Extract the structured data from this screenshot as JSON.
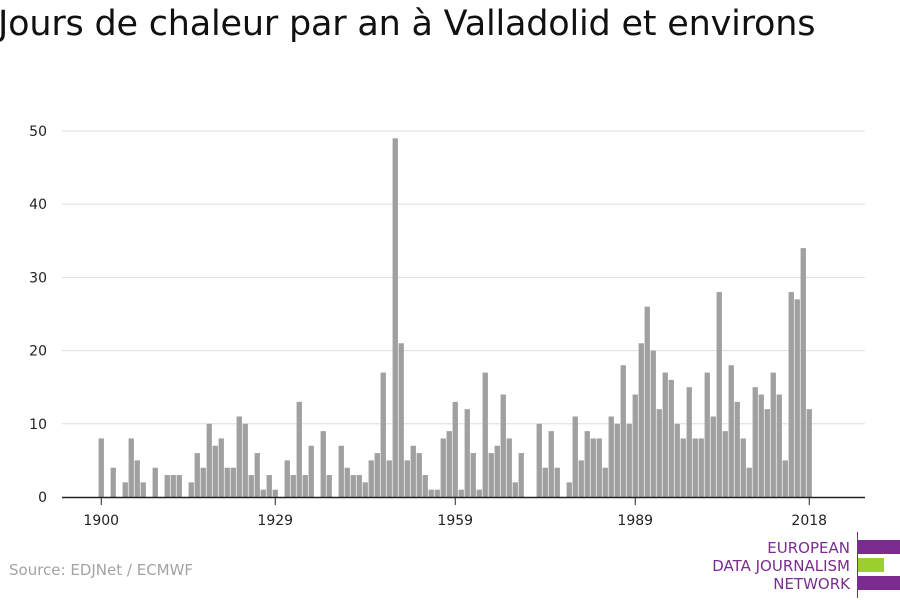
{
  "title": "Jours de chaleur par an à Valladolid et environs",
  "source": "Source: EDJNet / ECMWF",
  "logo": {
    "lines": [
      "EUROPEAN",
      "DATA JOURNALISM",
      "NETWORK"
    ],
    "colors": {
      "purple": "#7b2c8f",
      "green": "#9ad12f"
    }
  },
  "colors": {
    "bar": "#a0a0a0",
    "grid": "#dddddd",
    "axis": "#222222"
  },
  "chart_data": {
    "type": "bar",
    "title": "Jours de chaleur par an à Valladolid et environs",
    "xlabel": "",
    "ylabel": "",
    "ylim": [
      0,
      50
    ],
    "yticks": [
      0,
      10,
      20,
      30,
      40,
      50
    ],
    "xticks": [
      1900,
      1929,
      1959,
      1989,
      2018
    ],
    "grid": true,
    "x": [
      1894,
      1895,
      1896,
      1897,
      1898,
      1899,
      1900,
      1901,
      1902,
      1903,
      1904,
      1905,
      1906,
      1907,
      1908,
      1909,
      1910,
      1911,
      1912,
      1913,
      1914,
      1915,
      1916,
      1917,
      1918,
      1919,
      1920,
      1921,
      1922,
      1923,
      1924,
      1925,
      1926,
      1927,
      1928,
      1929,
      1930,
      1931,
      1932,
      1933,
      1934,
      1935,
      1936,
      1937,
      1938,
      1939,
      1940,
      1941,
      1942,
      1943,
      1944,
      1945,
      1946,
      1947,
      1948,
      1949,
      1950,
      1951,
      1952,
      1953,
      1954,
      1955,
      1956,
      1957,
      1958,
      1959,
      1960,
      1961,
      1962,
      1963,
      1964,
      1965,
      1966,
      1967,
      1968,
      1969,
      1970,
      1971,
      1972,
      1973,
      1974,
      1975,
      1976,
      1977,
      1978,
      1979,
      1980,
      1981,
      1982,
      1983,
      1984,
      1985,
      1986,
      1987,
      1988,
      1989,
      1990,
      1991,
      1992,
      1993,
      1994,
      1995,
      1996,
      1997,
      1998,
      1999,
      2000,
      2001,
      2002,
      2003,
      2004,
      2005,
      2006,
      2007,
      2008,
      2009,
      2010,
      2011,
      2012,
      2013,
      2014,
      2015,
      2016,
      2017,
      2018,
      2019
    ],
    "values": [
      0,
      0,
      0,
      0,
      0,
      0,
      8,
      0,
      4,
      0,
      2,
      8,
      5,
      2,
      0,
      4,
      0,
      3,
      3,
      3,
      0,
      2,
      6,
      4,
      10,
      7,
      8,
      4,
      4,
      11,
      10,
      3,
      6,
      1,
      3,
      1,
      0,
      5,
      3,
      13,
      3,
      7,
      0,
      9,
      3,
      0,
      7,
      4,
      3,
      3,
      2,
      5,
      6,
      17,
      5,
      49,
      21,
      5,
      7,
      6,
      3,
      1,
      1,
      8,
      9,
      13,
      1,
      12,
      6,
      1,
      17,
      6,
      7,
      14,
      8,
      2,
      6,
      0,
      0,
      10,
      4,
      9,
      4,
      0,
      2,
      11,
      5,
      9,
      8,
      8,
      4,
      11,
      10,
      18,
      10,
      14,
      21,
      26,
      20,
      12,
      17,
      16,
      10,
      8,
      15,
      8,
      8,
      17,
      11,
      28,
      9,
      18,
      13,
      8,
      4,
      15,
      14,
      12,
      17,
      14,
      5,
      28,
      27,
      34,
      12,
      0
    ]
  }
}
